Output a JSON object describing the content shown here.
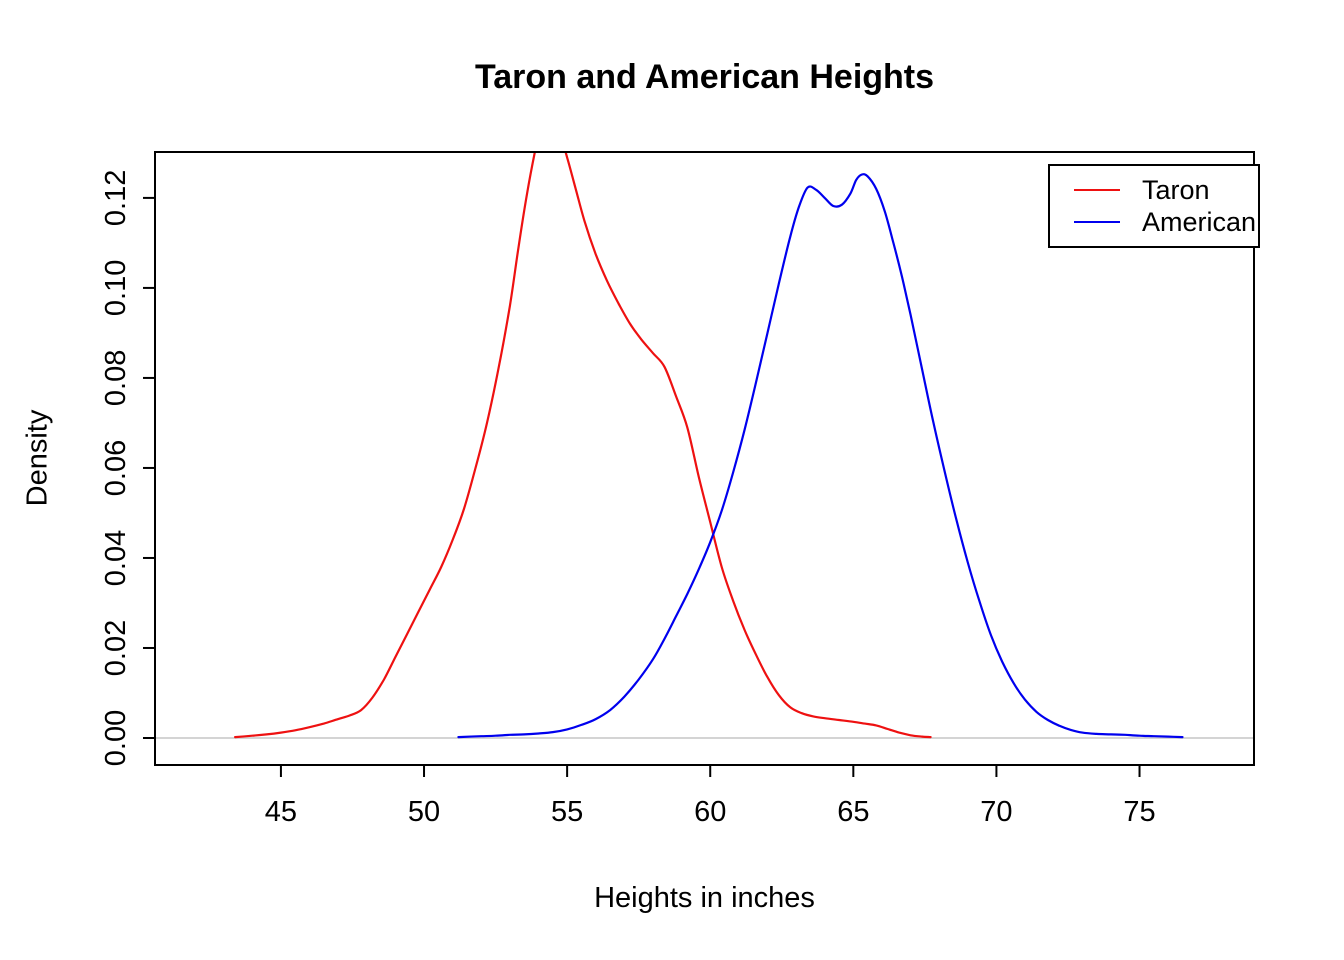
{
  "chart_data": {
    "type": "line",
    "title": "Taron and American Heights",
    "xlabel": "Heights in inches",
    "ylabel": "Density",
    "xlim": [
      40.6,
      79.0
    ],
    "ylim": [
      -0.006,
      0.1302
    ],
    "xticks": [
      45,
      50,
      55,
      60,
      65,
      70,
      75
    ],
    "xtick_labels": [
      "45",
      "50",
      "55",
      "60",
      "65",
      "70",
      "75"
    ],
    "yticks": [
      0.0,
      0.02,
      0.04,
      0.06,
      0.08,
      0.1,
      0.12
    ],
    "ytick_labels": [
      "0.00",
      "0.02",
      "0.04",
      "0.06",
      "0.08",
      "0.10",
      "0.12"
    ],
    "grid": false,
    "legend_position": "top-right",
    "baseline": {
      "y": 0,
      "color": "#d4d4d4"
    },
    "box_color": "#000000",
    "series": [
      {
        "name": "Taron",
        "color": "#ee1111",
        "points": [
          [
            43.4,
            0.0002
          ],
          [
            44,
            0.0005
          ],
          [
            44.5,
            0.0008
          ],
          [
            45,
            0.0012
          ],
          [
            45.5,
            0.0017
          ],
          [
            46,
            0.0024
          ],
          [
            46.5,
            0.0032
          ],
          [
            47,
            0.0042
          ],
          [
            47.4,
            0.005
          ],
          [
            47.8,
            0.0062
          ],
          [
            48.2,
            0.009
          ],
          [
            48.6,
            0.013
          ],
          [
            49,
            0.018
          ],
          [
            49.4,
            0.023
          ],
          [
            49.8,
            0.028
          ],
          [
            50.2,
            0.033
          ],
          [
            50.6,
            0.038
          ],
          [
            51,
            0.044
          ],
          [
            51.4,
            0.051
          ],
          [
            51.8,
            0.06
          ],
          [
            52.2,
            0.07
          ],
          [
            52.6,
            0.082
          ],
          [
            53,
            0.096
          ],
          [
            53.3,
            0.109
          ],
          [
            53.6,
            0.121
          ],
          [
            53.9,
            0.131
          ],
          [
            54.1,
            0.136
          ],
          [
            54.4,
            0.1375
          ],
          [
            54.7,
            0.135
          ],
          [
            55,
            0.129
          ],
          [
            55.3,
            0.122
          ],
          [
            55.6,
            0.115
          ],
          [
            56,
            0.1075
          ],
          [
            56.4,
            0.1015
          ],
          [
            56.8,
            0.0965
          ],
          [
            57.2,
            0.092
          ],
          [
            57.6,
            0.0885
          ],
          [
            58,
            0.0855
          ],
          [
            58.4,
            0.0825
          ],
          [
            58.8,
            0.076
          ],
          [
            59.2,
            0.069
          ],
          [
            59.6,
            0.058
          ],
          [
            60,
            0.048
          ],
          [
            60.4,
            0.038
          ],
          [
            60.8,
            0.0305
          ],
          [
            61.2,
            0.024
          ],
          [
            61.6,
            0.0185
          ],
          [
            62,
            0.0135
          ],
          [
            62.4,
            0.0095
          ],
          [
            62.8,
            0.0068
          ],
          [
            63.2,
            0.0055
          ],
          [
            63.6,
            0.0048
          ],
          [
            64,
            0.0044
          ],
          [
            64.5,
            0.004
          ],
          [
            65,
            0.0036
          ],
          [
            65.4,
            0.0032
          ],
          [
            65.8,
            0.0028
          ],
          [
            66.2,
            0.002
          ],
          [
            66.6,
            0.0012
          ],
          [
            67,
            0.0006
          ],
          [
            67.4,
            0.0003
          ],
          [
            67.7,
            0.0002
          ]
        ]
      },
      {
        "name": "American",
        "color": "#0000ee",
        "points": [
          [
            51.2,
            0.0002
          ],
          [
            52,
            0.0004
          ],
          [
            52.5,
            0.0005
          ],
          [
            53,
            0.0007
          ],
          [
            53.5,
            0.0008
          ],
          [
            54,
            0.001
          ],
          [
            54.5,
            0.0013
          ],
          [
            55,
            0.0019
          ],
          [
            55.5,
            0.0029
          ],
          [
            56,
            0.0042
          ],
          [
            56.5,
            0.0062
          ],
          [
            57,
            0.0092
          ],
          [
            57.5,
            0.013
          ],
          [
            58,
            0.0175
          ],
          [
            58.4,
            0.022
          ],
          [
            58.8,
            0.027
          ],
          [
            59.2,
            0.032
          ],
          [
            59.6,
            0.0375
          ],
          [
            60,
            0.0435
          ],
          [
            60.4,
            0.0505
          ],
          [
            60.8,
            0.059
          ],
          [
            61.2,
            0.0685
          ],
          [
            61.6,
            0.079
          ],
          [
            62,
            0.09
          ],
          [
            62.4,
            0.101
          ],
          [
            62.8,
            0.1115
          ],
          [
            63.1,
            0.118
          ],
          [
            63.4,
            0.1223
          ],
          [
            63.7,
            0.1218
          ],
          [
            64,
            0.12
          ],
          [
            64.3,
            0.1182
          ],
          [
            64.6,
            0.1185
          ],
          [
            64.9,
            0.121
          ],
          [
            65.1,
            0.124
          ],
          [
            65.3,
            0.1252
          ],
          [
            65.5,
            0.1248
          ],
          [
            65.8,
            0.122
          ],
          [
            66.1,
            0.117
          ],
          [
            66.4,
            0.11
          ],
          [
            66.7,
            0.1025
          ],
          [
            67,
            0.094
          ],
          [
            67.4,
            0.082
          ],
          [
            67.8,
            0.07
          ],
          [
            68.2,
            0.059
          ],
          [
            68.6,
            0.0485
          ],
          [
            69,
            0.039
          ],
          [
            69.4,
            0.0305
          ],
          [
            69.8,
            0.023
          ],
          [
            70.2,
            0.017
          ],
          [
            70.6,
            0.0122
          ],
          [
            71,
            0.0085
          ],
          [
            71.4,
            0.0058
          ],
          [
            71.8,
            0.004
          ],
          [
            72.2,
            0.0027
          ],
          [
            72.6,
            0.0018
          ],
          [
            73,
            0.0012
          ],
          [
            73.5,
            0.0009
          ],
          [
            74,
            0.0008
          ],
          [
            74.5,
            0.0007
          ],
          [
            75,
            0.0005
          ],
          [
            75.5,
            0.0004
          ],
          [
            76,
            0.0003
          ],
          [
            76.5,
            0.0002
          ]
        ]
      }
    ]
  }
}
